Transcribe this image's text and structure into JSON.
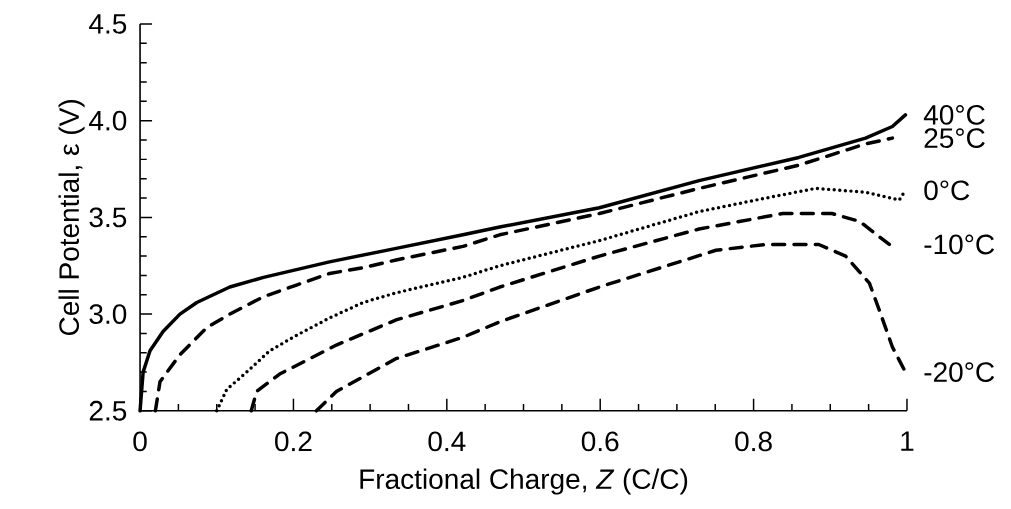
{
  "chart_data": {
    "type": "line",
    "xlabel": "Fractional Charge, *Z* (C/C)",
    "ylabel": "Cell Potential, ε (V)",
    "xlim": [
      0,
      1
    ],
    "ylim": [
      2.5,
      4.5
    ],
    "xticks": [
      0,
      0.2,
      0.4,
      0.6,
      0.8,
      1
    ],
    "yticks": [
      2.5,
      {
        "value": 3,
        "label": "3.0"
      },
      3.5,
      {
        "value": 4,
        "label": "4.0"
      },
      4.5
    ],
    "grid": false,
    "legend": false,
    "marker": "none",
    "series": [
      {
        "name": "40°C",
        "color": "#000000",
        "line_style": "solid",
        "x": [
          0,
          0.004,
          0.013,
          0.03,
          0.052,
          0.074,
          0.117,
          0.161,
          0.247,
          0.334,
          0.421,
          0.469,
          0.599,
          0.729,
          0.859,
          0.946,
          0.981,
          0.998
        ],
        "values": [
          2.5,
          2.7,
          2.81,
          2.91,
          3.0,
          3.06,
          3.14,
          3.19,
          3.27,
          3.34,
          3.41,
          3.45,
          3.55,
          3.69,
          3.81,
          3.91,
          3.97,
          4.03
        ]
      },
      {
        "name": "25°C",
        "color": "#000000",
        "line_style": "dashed",
        "x": [
          0.02,
          0.026,
          0.052,
          0.087,
          0.117,
          0.161,
          0.204,
          0.247,
          0.291,
          0.334,
          0.421,
          0.469,
          0.599,
          0.729,
          0.859,
          0.946,
          0.981
        ],
        "values": [
          2.5,
          2.65,
          2.79,
          2.93,
          3.0,
          3.09,
          3.15,
          3.21,
          3.24,
          3.28,
          3.35,
          3.41,
          3.52,
          3.65,
          3.77,
          3.88,
          3.91
        ]
      },
      {
        "name": "0°C",
        "color": "#000000",
        "line_style": "dotted",
        "x": [
          0.1,
          0.113,
          0.139,
          0.169,
          0.204,
          0.247,
          0.291,
          0.334,
          0.421,
          0.469,
          0.599,
          0.729,
          0.816,
          0.881,
          0.946,
          0.99,
          0.998
        ],
        "values": [
          2.5,
          2.61,
          2.7,
          2.81,
          2.89,
          2.98,
          3.06,
          3.11,
          3.19,
          3.25,
          3.38,
          3.53,
          3.6,
          3.65,
          3.63,
          3.59,
          3.64
        ]
      },
      {
        "name": "-10°C",
        "color": "#000000",
        "line_style": "dashed",
        "x": [
          0.145,
          0.152,
          0.182,
          0.256,
          0.334,
          0.421,
          0.469,
          0.599,
          0.729,
          0.838,
          0.902,
          0.938,
          0.977
        ],
        "values": [
          2.5,
          2.6,
          2.69,
          2.84,
          2.97,
          3.07,
          3.14,
          3.3,
          3.44,
          3.52,
          3.52,
          3.48,
          3.36
        ]
      },
      {
        "name": "-20°C",
        "color": "#000000",
        "line_style": "dashed",
        "x": [
          0.23,
          0.256,
          0.334,
          0.421,
          0.469,
          0.599,
          0.751,
          0.816,
          0.885,
          0.92,
          0.951,
          0.964,
          0.981,
          0.998
        ],
        "values": [
          2.5,
          2.6,
          2.77,
          2.88,
          2.96,
          3.14,
          3.33,
          3.36,
          3.36,
          3.3,
          3.16,
          3.02,
          2.83,
          2.7
        ]
      }
    ]
  }
}
